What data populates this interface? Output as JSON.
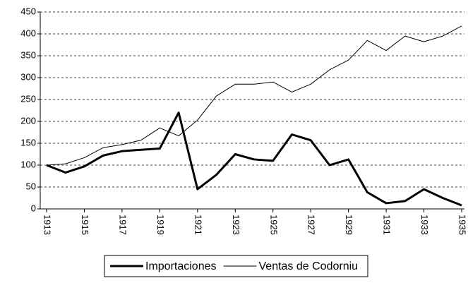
{
  "chart_data": {
    "type": "line",
    "x": [
      1913,
      1914,
      1915,
      1916,
      1917,
      1918,
      1919,
      1920,
      1921,
      1922,
      1923,
      1924,
      1925,
      1926,
      1927,
      1928,
      1929,
      1930,
      1931,
      1932,
      1933,
      1934,
      1935
    ],
    "series": [
      {
        "name": "Importaciones",
        "color": "#000000",
        "values": [
          100,
          83,
          97,
          122,
          132,
          135,
          138,
          220,
          45,
          78,
          125,
          113,
          110,
          170,
          157,
          100,
          113,
          38,
          13,
          18,
          45,
          25,
          8
        ]
      },
      {
        "name": "Ventas de Codorniu",
        "color": "#000000",
        "values": [
          100,
          103,
          117,
          140,
          147,
          157,
          185,
          167,
          203,
          258,
          285,
          285,
          290,
          267,
          285,
          318,
          340,
          385,
          362,
          395,
          382,
          395,
          418
        ]
      }
    ],
    "xlim": [
      1913,
      1935
    ],
    "xticks": [
      1913,
      1915,
      1917,
      1919,
      1921,
      1923,
      1925,
      1927,
      1929,
      1931,
      1933,
      1935
    ],
    "ylim": [
      0,
      450
    ],
    "yticks": [
      0,
      50,
      100,
      150,
      200,
      250,
      300,
      350,
      400,
      450
    ],
    "grid": true,
    "legend": "bottom"
  }
}
